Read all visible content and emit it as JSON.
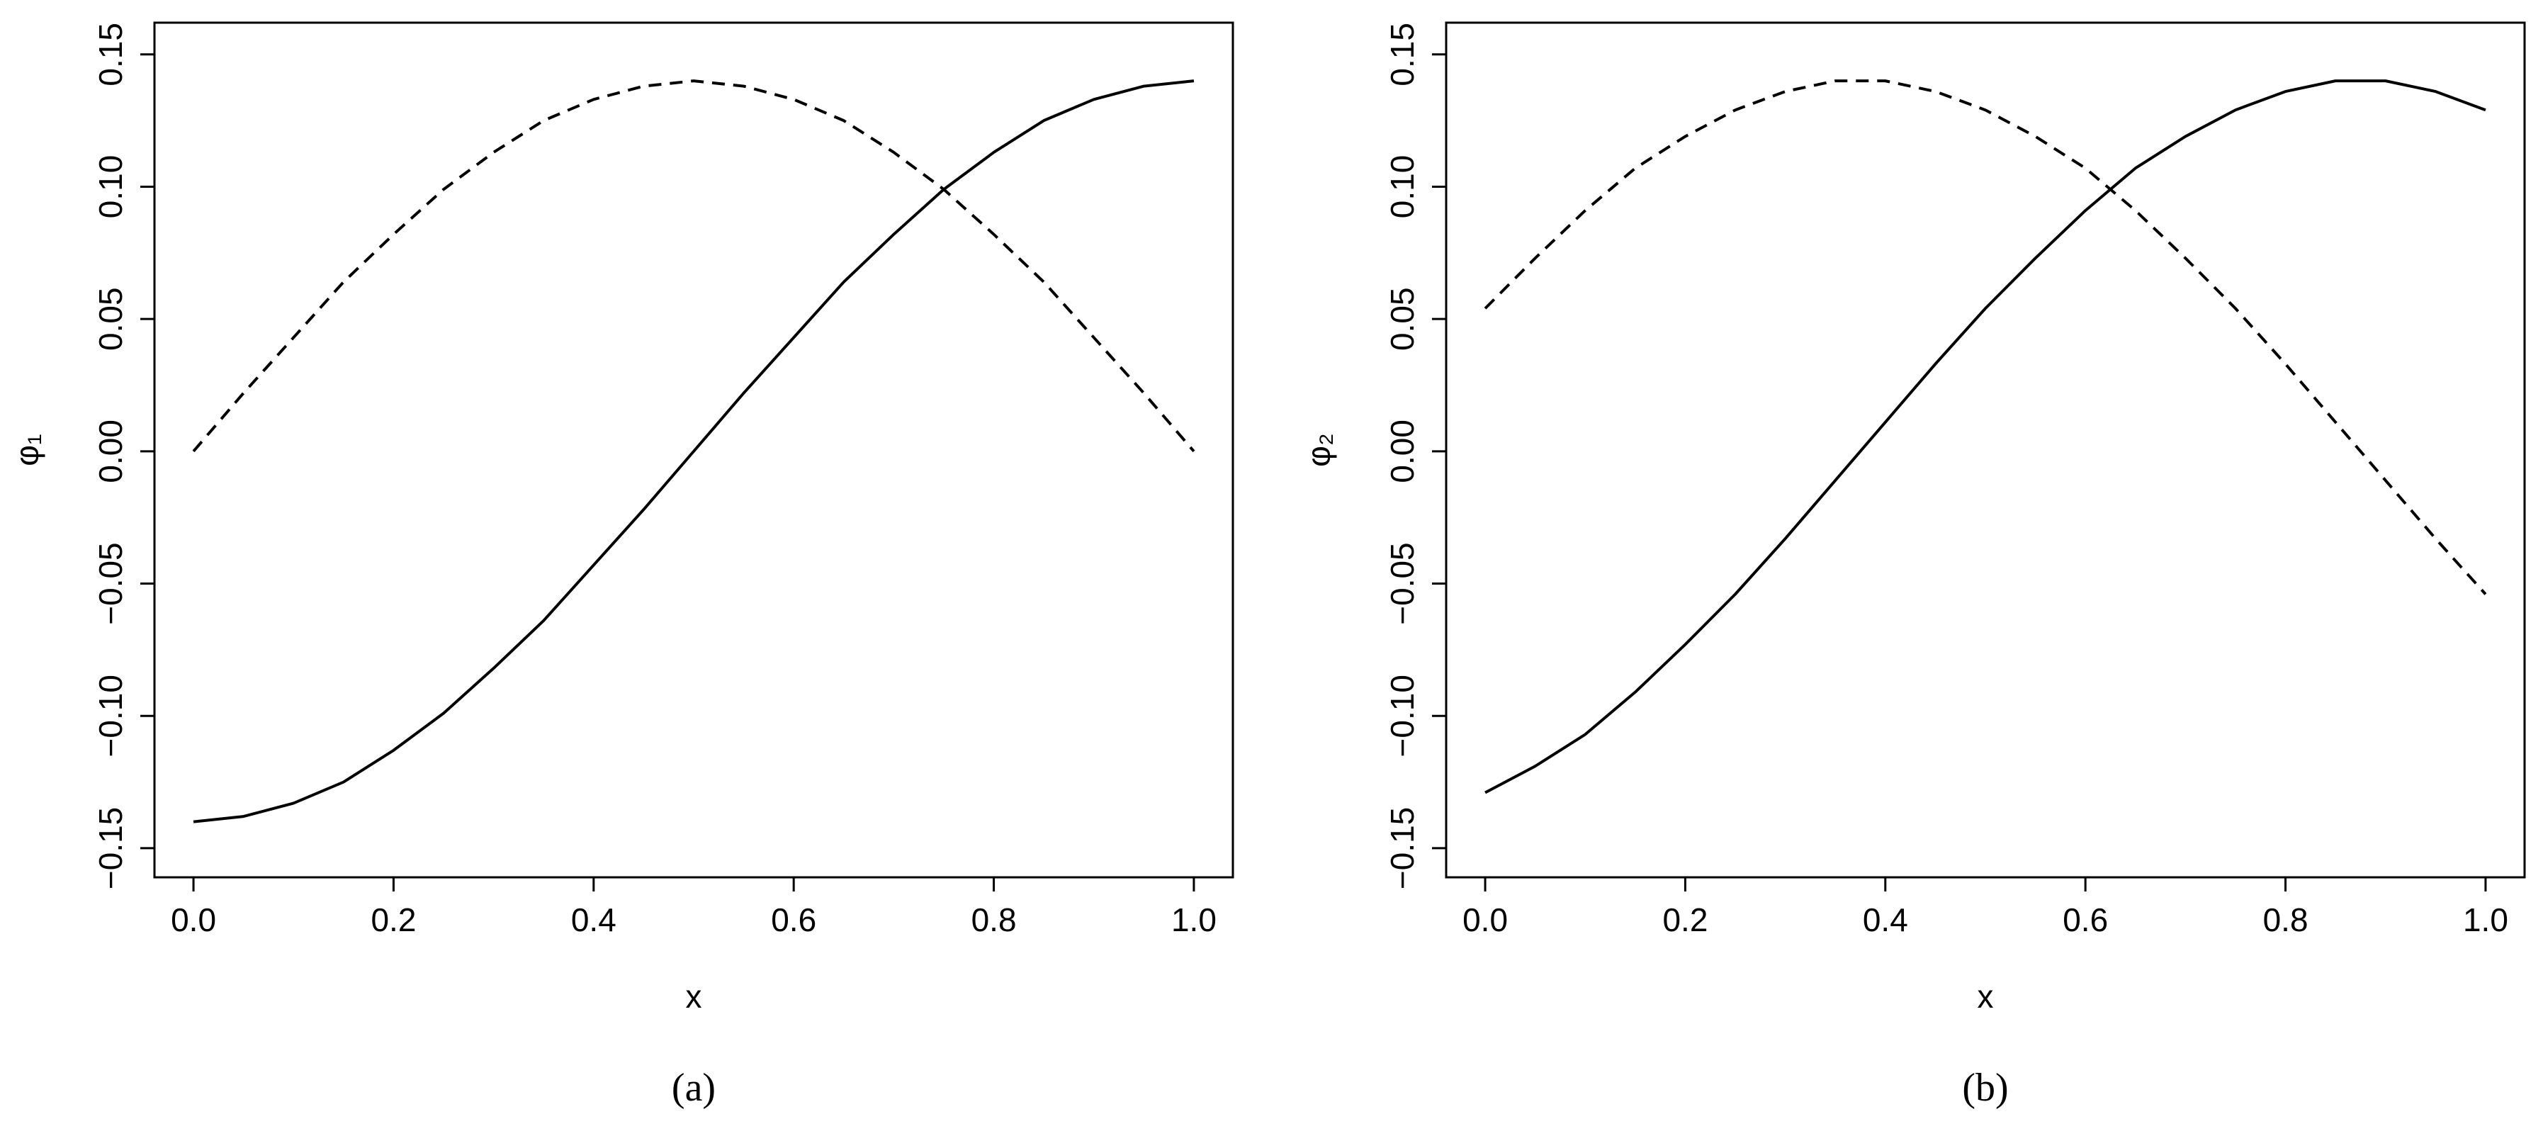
{
  "chart_data": [
    {
      "type": "line",
      "x_label": "x",
      "y_label": "φ₁",
      "caption": "(a)",
      "x": [
        0,
        0.05,
        0.1,
        0.15,
        0.2,
        0.25,
        0.3,
        0.35,
        0.4,
        0.45,
        0.5,
        0.55,
        0.6,
        0.65,
        0.7,
        0.75,
        0.8,
        0.85,
        0.9,
        0.95,
        1
      ],
      "series": [
        {
          "color": "#000000",
          "dashed": false,
          "values": [
            -0.14,
            -0.138,
            -0.133,
            -0.125,
            -0.113,
            -0.099,
            -0.082,
            -0.064,
            -0.043,
            -0.022,
            0,
            0.022,
            0.043,
            0.064,
            0.082,
            0.099,
            0.113,
            0.125,
            0.133,
            0.138,
            0.14
          ]
        },
        {
          "color": "#000000",
          "dashed": true,
          "values": [
            0,
            0.022,
            0.043,
            0.064,
            0.082,
            0.099,
            0.113,
            0.125,
            0.133,
            0.138,
            0.14,
            0.138,
            0.133,
            0.125,
            0.113,
            0.099,
            0.082,
            0.064,
            0.043,
            0.022,
            0
          ]
        }
      ],
      "xlim": [
        -0.039,
        1.039
      ],
      "xticks": [
        {
          "value": 0,
          "label": "0.0"
        },
        0.2,
        0.4,
        0.6,
        0.8,
        {
          "value": 1,
          "label": "1.0"
        }
      ],
      "ylim": [
        -0.161,
        0.162
      ],
      "yticks": [
        {
          "value": -0.15,
          "label": "−0.15"
        },
        {
          "value": -0.1,
          "label": "−0.10"
        },
        {
          "value": -0.05,
          "label": "−0.05"
        },
        {
          "value": 0,
          "label": "0.00"
        },
        0.05,
        {
          "value": 0.1,
          "label": "0.10"
        },
        0.15
      ]
    },
    {
      "type": "line",
      "x_label": "x",
      "y_label": "φ₂",
      "caption": "(b)",
      "x": [
        0,
        0.05,
        0.1,
        0.15,
        0.2,
        0.25,
        0.3,
        0.35,
        0.4,
        0.45,
        0.5,
        0.55,
        0.6,
        0.65,
        0.7,
        0.75,
        0.8,
        0.85,
        0.9,
        0.95,
        1
      ],
      "series": [
        {
          "color": "#000000",
          "dashed": false,
          "values": [
            -0.129,
            -0.119,
            -0.107,
            -0.091,
            -0.073,
            -0.054,
            -0.033,
            -0.011,
            0.011,
            0.033,
            0.054,
            0.073,
            0.091,
            0.107,
            0.119,
            0.129,
            0.136,
            0.14,
            0.14,
            0.136,
            0.129
          ]
        },
        {
          "color": "#000000",
          "dashed": true,
          "values": [
            0.054,
            0.073,
            0.091,
            0.107,
            0.119,
            0.129,
            0.136,
            0.14,
            0.14,
            0.136,
            0.129,
            0.119,
            0.107,
            0.091,
            0.073,
            0.054,
            0.033,
            0.011,
            -0.011,
            -0.033,
            -0.054
          ]
        }
      ],
      "xlim": [
        -0.039,
        1.039
      ],
      "xticks": [
        {
          "value": 0,
          "label": "0.0"
        },
        0.2,
        0.4,
        0.6,
        0.8,
        {
          "value": 1,
          "label": "1.0"
        }
      ],
      "ylim": [
        -0.161,
        0.162
      ],
      "yticks": [
        {
          "value": -0.15,
          "label": "−0.15"
        },
        {
          "value": -0.1,
          "label": "−0.10"
        },
        {
          "value": -0.05,
          "label": "−0.05"
        },
        {
          "value": 0,
          "label": "0.00"
        },
        0.05,
        {
          "value": 0.1,
          "label": "0.10"
        },
        0.15
      ]
    }
  ]
}
